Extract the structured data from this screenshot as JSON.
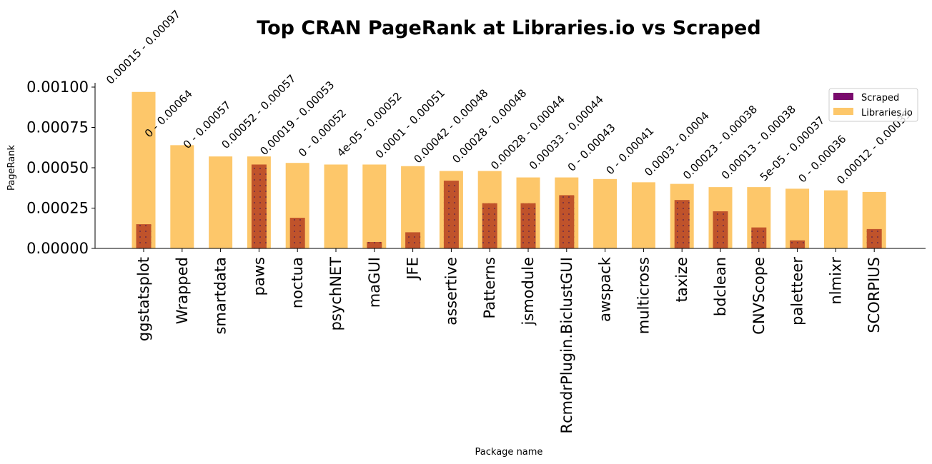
{
  "chart_data": {
    "type": "bar",
    "title": "Top CRAN PageRank at Libraries.io vs Scraped",
    "xlabel": "Package name",
    "ylabel": "PageRank",
    "ylim": [
      0,
      0.001
    ],
    "yticks": [
      "0.00000",
      "0.00025",
      "0.00050",
      "0.00075",
      "0.00100"
    ],
    "ytick_values": [
      0,
      0.00025,
      0.0005,
      0.00075,
      0.001
    ],
    "categories": [
      "ggstatsplot",
      "Wrapped",
      "smartdata",
      "paws",
      "noctua",
      "psychNET",
      "maGUI",
      "JFE",
      "assertive",
      "Patterns",
      "jsmodule",
      "RcmdrPlugin.BiclustGUI",
      "awspack",
      "multicross",
      "taxize",
      "bdclean",
      "CNVScope",
      "paletteer",
      "nlmixr",
      "SCORPIUS"
    ],
    "series": [
      {
        "name": "Libraries.io",
        "color": "#fdc76a",
        "values": [
          0.00097,
          0.00064,
          0.00057,
          0.00057,
          0.00053,
          0.00052,
          0.00052,
          0.00051,
          0.00048,
          0.00048,
          0.00044,
          0.00044,
          0.00043,
          0.00041,
          0.0004,
          0.00038,
          0.00038,
          0.00037,
          0.00036,
          0.00035
        ]
      },
      {
        "name": "Scraped",
        "color": "#c0532b",
        "legend_color": "#7a0a6e",
        "hatch": "dots",
        "values": [
          0.00015,
          0,
          0,
          0.00052,
          0.00019,
          0,
          4e-05,
          0.0001,
          0.00042,
          0.00028,
          0.00028,
          0.00033,
          0,
          0,
          0.0003,
          0.00023,
          0.00013,
          5e-05,
          0,
          0.00012
        ]
      }
    ],
    "data_labels": [
      "0.00015 - 0.00097",
      "0 - 0.00064",
      "0 - 0.00057",
      "0.00052 - 0.00057",
      "0.00019 - 0.00053",
      "0 - 0.00052",
      "4e-05 - 0.00052",
      "0.0001 - 0.00051",
      "0.00042 - 0.00048",
      "0.00028 - 0.00048",
      "0.00028 - 0.00044",
      "0.00033 - 0.00044",
      "0 - 0.00043",
      "0 - 0.00041",
      "0.0003 - 0.0004",
      "0.00023 - 0.00038",
      "0.00013 - 0.00038",
      "5e-05 - 0.00037",
      "0 - 0.00036",
      "0.00012 - 0.00035"
    ],
    "legend": {
      "placement": "upper-right",
      "entries": [
        "Scraped",
        "Libraries.io"
      ]
    },
    "grid": false
  }
}
